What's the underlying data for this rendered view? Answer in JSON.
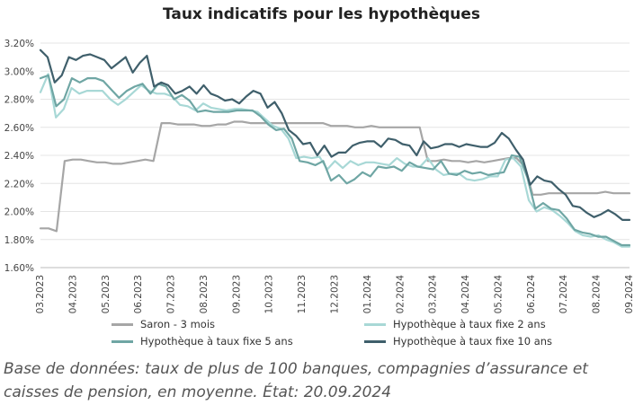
{
  "chart_data": {
    "type": "line",
    "title": "Taux indicatifs pour les hypothèques",
    "xlabel": "",
    "ylabel": "",
    "ylim": [
      1.6,
      3.2
    ],
    "yticks": [
      "1.60%",
      "1.80%",
      "2.00%",
      "2.20%",
      "2.40%",
      "2.60%",
      "2.80%",
      "3.00%",
      "3.20%"
    ],
    "xticks": [
      "03.2023",
      "04.2023",
      "05.2023",
      "06.2023",
      "07.2023",
      "08.2023",
      "09.2023",
      "10.2023",
      "11.2023",
      "12.2023",
      "01.2024",
      "02.2024",
      "03.2024",
      "04.2024",
      "05.2024",
      "06.2024",
      "07.2024",
      "08.2024",
      "09.2024"
    ],
    "series": [
      {
        "name": "Saron - 3 mois",
        "color": "#a6a6a6",
        "values": [
          1.88,
          1.88,
          1.86,
          2.36,
          2.37,
          2.37,
          2.36,
          2.35,
          2.35,
          2.34,
          2.34,
          2.35,
          2.36,
          2.37,
          2.36,
          2.63,
          2.63,
          2.62,
          2.62,
          2.62,
          2.61,
          2.61,
          2.62,
          2.62,
          2.64,
          2.64,
          2.63,
          2.63,
          2.63,
          2.63,
          2.63,
          2.63,
          2.63,
          2.63,
          2.63,
          2.63,
          2.61,
          2.61,
          2.61,
          2.6,
          2.6,
          2.61,
          2.6,
          2.6,
          2.6,
          2.6,
          2.6,
          2.6,
          2.36,
          2.36,
          2.37,
          2.36,
          2.36,
          2.35,
          2.36,
          2.35,
          2.36,
          2.37,
          2.38,
          2.38,
          2.32,
          2.12,
          2.12,
          2.13,
          2.13,
          2.13,
          2.13,
          2.13,
          2.13,
          2.13,
          2.14,
          2.13,
          2.13,
          2.13
        ]
      },
      {
        "name": "Hypothèque à taux fixe 2 ans",
        "color": "#a8d8d6",
        "values": [
          2.85,
          2.98,
          2.67,
          2.73,
          2.88,
          2.84,
          2.86,
          2.86,
          2.86,
          2.8,
          2.76,
          2.8,
          2.85,
          2.9,
          2.86,
          2.84,
          2.84,
          2.82,
          2.76,
          2.75,
          2.72,
          2.77,
          2.74,
          2.73,
          2.72,
          2.73,
          2.73,
          2.72,
          2.71,
          2.66,
          2.61,
          2.59,
          2.52,
          2.38,
          2.39,
          2.38,
          2.39,
          2.3,
          2.36,
          2.31,
          2.36,
          2.33,
          2.35,
          2.35,
          2.34,
          2.33,
          2.38,
          2.34,
          2.32,
          2.32,
          2.38,
          2.3,
          2.26,
          2.27,
          2.27,
          2.23,
          2.22,
          2.23,
          2.25,
          2.25,
          2.37,
          2.38,
          2.32,
          2.08,
          2.0,
          2.03,
          2.01,
          1.97,
          1.92,
          1.86,
          1.83,
          1.82,
          1.83,
          1.8,
          1.78,
          1.75,
          1.75
        ]
      },
      {
        "name": "Hypothèque à taux fixe 5 ans",
        "color": "#6fa6a4",
        "values": [
          2.95,
          2.97,
          2.75,
          2.8,
          2.95,
          2.92,
          2.95,
          2.95,
          2.93,
          2.87,
          2.81,
          2.86,
          2.89,
          2.91,
          2.84,
          2.91,
          2.89,
          2.8,
          2.83,
          2.79,
          2.71,
          2.72,
          2.71,
          2.71,
          2.71,
          2.72,
          2.72,
          2.72,
          2.68,
          2.62,
          2.58,
          2.59,
          2.52,
          2.36,
          2.35,
          2.33,
          2.36,
          2.22,
          2.26,
          2.2,
          2.23,
          2.28,
          2.25,
          2.32,
          2.31,
          2.32,
          2.29,
          2.35,
          2.32,
          2.31,
          2.3,
          2.36,
          2.27,
          2.26,
          2.29,
          2.27,
          2.28,
          2.26,
          2.27,
          2.28,
          2.4,
          2.39,
          2.24,
          2.02,
          2.06,
          2.02,
          2.01,
          1.95,
          1.87,
          1.85,
          1.84,
          1.82,
          1.82,
          1.79,
          1.76,
          1.76
        ]
      },
      {
        "name": "Hypothèque à taux fixe 10 ans",
        "color": "#3f5f6b",
        "values": [
          3.15,
          3.1,
          2.92,
          2.97,
          3.1,
          3.08,
          3.11,
          3.12,
          3.1,
          3.08,
          3.02,
          3.06,
          3.1,
          2.99,
          3.06,
          3.11,
          2.89,
          2.92,
          2.9,
          2.84,
          2.86,
          2.89,
          2.84,
          2.9,
          2.84,
          2.82,
          2.79,
          2.8,
          2.77,
          2.82,
          2.86,
          2.84,
          2.74,
          2.78,
          2.7,
          2.58,
          2.54,
          2.48,
          2.49,
          2.4,
          2.47,
          2.39,
          2.42,
          2.42,
          2.47,
          2.49,
          2.5,
          2.5,
          2.46,
          2.52,
          2.51,
          2.48,
          2.47,
          2.4,
          2.5,
          2.45,
          2.46,
          2.48,
          2.48,
          2.46,
          2.48,
          2.47,
          2.46,
          2.46,
          2.49,
          2.56,
          2.52,
          2.44,
          2.37,
          2.19,
          2.25,
          2.22,
          2.21,
          2.16,
          2.12,
          2.04,
          2.03,
          1.99,
          1.96,
          1.98,
          2.01,
          1.98,
          1.94,
          1.94
        ]
      }
    ],
    "legend_position": "bottom"
  },
  "caption": "Base de données: taux de plus de 100 banques, compagnies d’assurance et caisses de pension, en moyenne. État: 20.09.2024"
}
